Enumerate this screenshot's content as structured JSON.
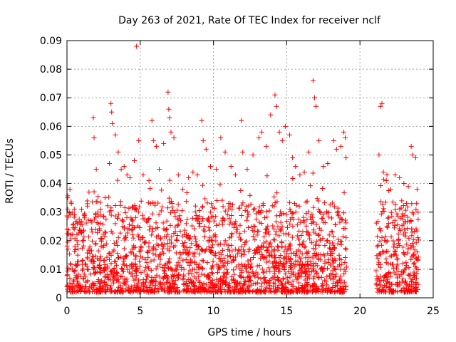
{
  "chart_data": {
    "type": "scatter",
    "title": "Day 263 of 2021, Rate Of TEC Index for receiver nclf",
    "xlabel": "GPS time / hours",
    "ylabel": "ROTI / TECUs",
    "xlim": [
      0,
      25
    ],
    "ylim": [
      0,
      0.09
    ],
    "xticks": [
      "0",
      "5",
      "10",
      "15",
      "20",
      "25"
    ],
    "yticks": [
      "0",
      "0.01",
      "0.02",
      "0.03",
      "0.04",
      "0.05",
      "0.06",
      "0.07",
      "0.08",
      "0.09"
    ],
    "grid": true,
    "marker": "plus",
    "color": "#ff0000",
    "series": [
      {
        "points": [
          [
            0.05,
            0.035
          ],
          [
            0.2,
            0.038
          ],
          [
            0.3,
            0.033
          ],
          [
            0.5,
            0.031
          ],
          [
            0.7,
            0.026
          ],
          [
            1.0,
            0.031
          ],
          [
            1.2,
            0.028
          ],
          [
            1.5,
            0.037
          ],
          [
            1.8,
            0.063
          ],
          [
            1.85,
            0.056
          ],
          [
            2.0,
            0.045
          ],
          [
            2.3,
            0.029
          ],
          [
            2.6,
            0.035
          ],
          [
            2.9,
            0.047
          ],
          [
            3.0,
            0.068
          ],
          [
            3.05,
            0.065
          ],
          [
            3.1,
            0.061
          ],
          [
            3.3,
            0.057
          ],
          [
            3.5,
            0.051
          ],
          [
            3.7,
            0.045
          ],
          [
            3.9,
            0.046
          ],
          [
            4.1,
            0.043
          ],
          [
            4.3,
            0.042
          ],
          [
            4.6,
            0.048
          ],
          [
            4.75,
            0.088
          ],
          [
            4.9,
            0.055
          ],
          [
            5.2,
            0.043
          ],
          [
            5.6,
            0.041
          ],
          [
            5.8,
            0.062
          ],
          [
            5.9,
            0.055
          ],
          [
            6.1,
            0.053
          ],
          [
            6.3,
            0.045
          ],
          [
            6.6,
            0.054
          ],
          [
            6.9,
            0.072
          ],
          [
            6.95,
            0.066
          ],
          [
            7.0,
            0.063
          ],
          [
            7.1,
            0.058
          ],
          [
            7.3,
            0.056
          ],
          [
            7.6,
            0.043
          ],
          [
            7.9,
            0.038
          ],
          [
            8.3,
            0.042
          ],
          [
            8.6,
            0.044
          ],
          [
            8.9,
            0.043
          ],
          [
            9.2,
            0.062
          ],
          [
            9.3,
            0.055
          ],
          [
            9.5,
            0.052
          ],
          [
            9.8,
            0.046
          ],
          [
            10.2,
            0.045
          ],
          [
            10.5,
            0.056
          ],
          [
            10.8,
            0.051
          ],
          [
            11.2,
            0.046
          ],
          [
            11.5,
            0.043
          ],
          [
            11.9,
            0.062
          ],
          [
            12.0,
            0.051
          ],
          [
            12.3,
            0.045
          ],
          [
            12.7,
            0.05
          ],
          [
            13.1,
            0.056
          ],
          [
            13.3,
            0.058
          ],
          [
            13.6,
            0.053
          ],
          [
            13.9,
            0.064
          ],
          [
            14.2,
            0.071
          ],
          [
            14.3,
            0.067
          ],
          [
            14.5,
            0.058
          ],
          [
            14.7,
            0.055
          ],
          [
            14.9,
            0.06
          ],
          [
            15.2,
            0.057
          ],
          [
            15.4,
            0.049
          ],
          [
            15.6,
            0.046
          ],
          [
            15.9,
            0.043
          ],
          [
            16.2,
            0.044
          ],
          [
            16.5,
            0.051
          ],
          [
            16.8,
            0.076
          ],
          [
            16.9,
            0.07
          ],
          [
            17.0,
            0.067
          ],
          [
            17.2,
            0.055
          ],
          [
            17.5,
            0.046
          ],
          [
            17.8,
            0.047
          ],
          [
            18.2,
            0.055
          ],
          [
            18.4,
            0.052
          ],
          [
            18.7,
            0.053
          ],
          [
            18.9,
            0.058
          ],
          [
            19.0,
            0.056
          ],
          [
            19.05,
            0.049
          ],
          [
            21.3,
            0.05
          ],
          [
            21.4,
            0.067
          ],
          [
            21.5,
            0.068
          ],
          [
            21.6,
            0.044
          ],
          [
            21.8,
            0.041
          ],
          [
            22.1,
            0.038
          ],
          [
            22.4,
            0.043
          ],
          [
            22.7,
            0.042
          ],
          [
            23.0,
            0.04
          ],
          [
            23.3,
            0.039
          ],
          [
            23.5,
            0.053
          ],
          [
            23.6,
            0.05
          ],
          [
            23.8,
            0.049
          ],
          [
            23.9,
            0.038
          ]
        ]
      }
    ]
  }
}
